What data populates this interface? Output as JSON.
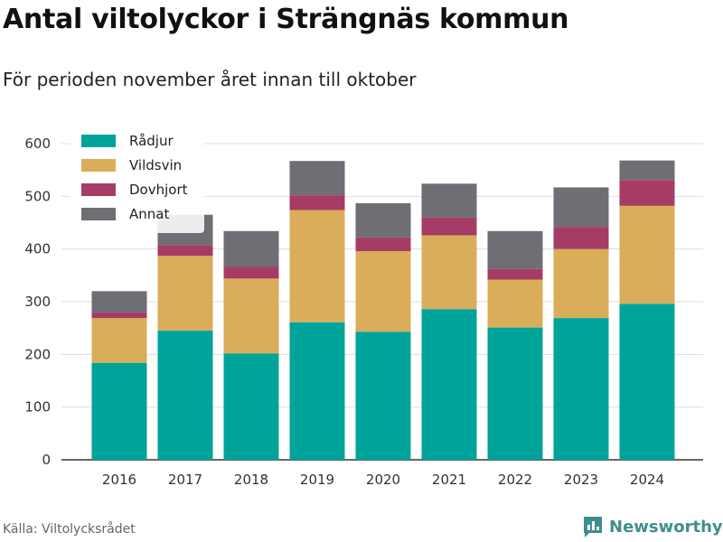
{
  "title": "Antal viltolyckor i Strängnäs kommun",
  "subtitle": "För perioden november året innan till oktober",
  "source": "Källa: Viltolycksrådet",
  "brand": "Newsworthy",
  "colors": {
    "radjur": "#00a399",
    "vildsvin": "#d9ad5a",
    "dovhjort": "#a63c66",
    "annat": "#6e6e74",
    "brand": "#3e8f8c"
  },
  "chart_data": {
    "type": "bar",
    "stacked": true,
    "categories": [
      "2016",
      "2017",
      "2018",
      "2019",
      "2020",
      "2021",
      "2022",
      "2023",
      "2024"
    ],
    "series": [
      {
        "name": "Rådjur",
        "values": [
          184,
          245,
          202,
          261,
          243,
          286,
          251,
          269,
          296
        ]
      },
      {
        "name": "Vildsvin",
        "values": [
          85,
          142,
          142,
          213,
          153,
          140,
          91,
          131,
          186
        ]
      },
      {
        "name": "Dovhjort",
        "values": [
          11,
          20,
          22,
          28,
          26,
          34,
          20,
          42,
          49
        ]
      },
      {
        "name": "Annat",
        "values": [
          40,
          58,
          68,
          65,
          65,
          64,
          72,
          75,
          37
        ]
      }
    ],
    "yticks": [
      0,
      100,
      200,
      300,
      400,
      500,
      600
    ],
    "ylim": [
      0,
      600
    ],
    "grid": true,
    "legend": "top-left"
  }
}
